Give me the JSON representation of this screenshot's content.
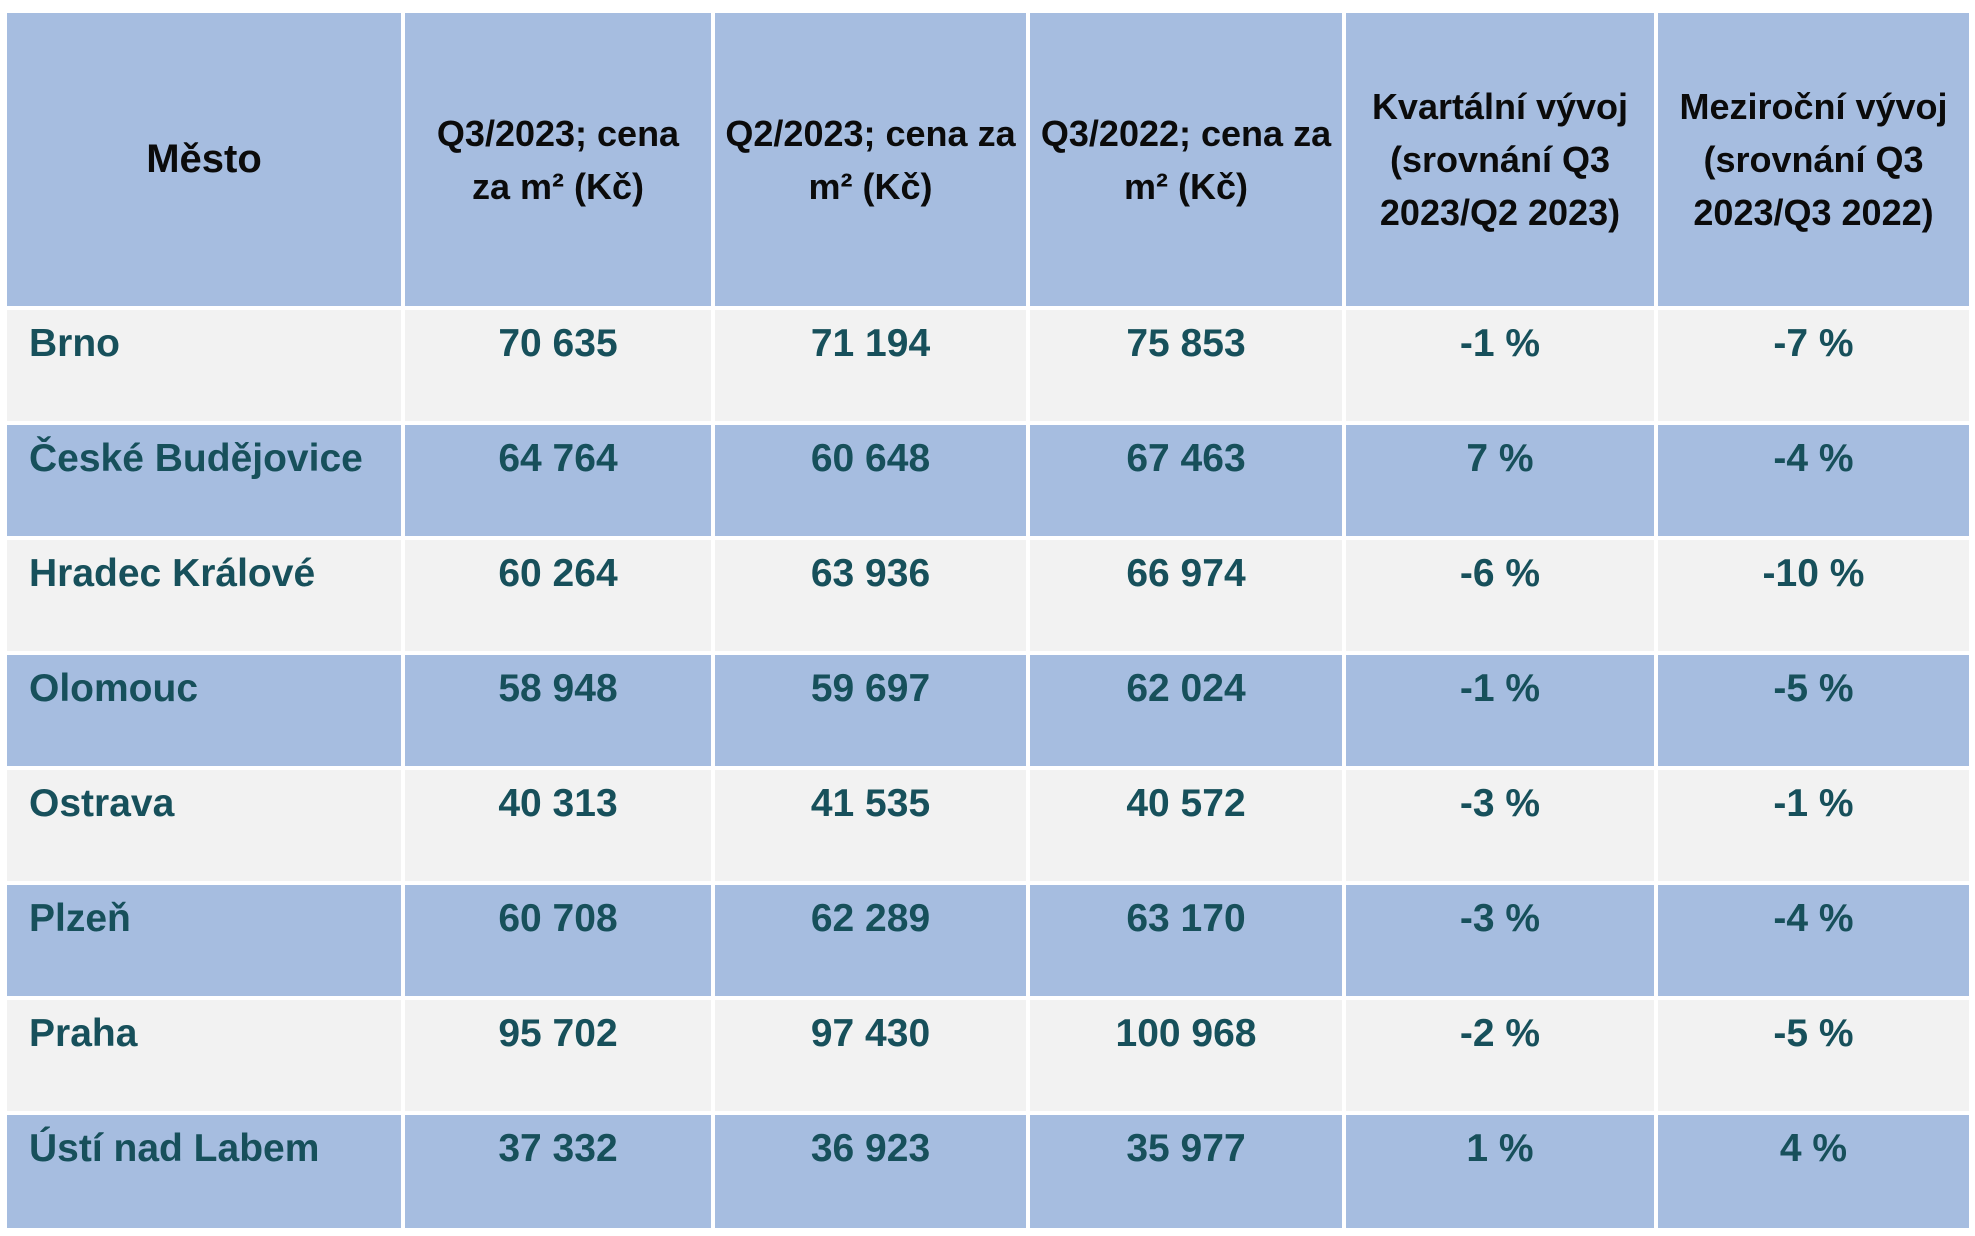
{
  "table": {
    "headers": [
      "Město",
      "Q3/2023; cena za m² (Kč)",
      "Q2/2023; cena za m² (Kč)",
      "Q3/2022; cena za m² (Kč)",
      "Kvartální vývoj (srovnání Q3 2023/Q2 2023)",
      "Meziroční vývoj (srovnání Q3 2023/Q3 2022)"
    ],
    "rows": [
      [
        "Brno",
        "70 635",
        "71 194",
        "75 853",
        "-1 %",
        "-7 %"
      ],
      [
        "České Budějovice",
        "64 764",
        "60 648",
        "67 463",
        "7 %",
        "-4 %"
      ],
      [
        "Hradec Králové",
        "60 264",
        "63 936",
        "66 974",
        "-6 %",
        "-10 %"
      ],
      [
        "Olomouc",
        "58 948",
        "59 697",
        "62 024",
        "-1 %",
        "-5 %"
      ],
      [
        "Ostrava",
        "40 313",
        "41 535",
        "40 572",
        "-3 %",
        "-1 %"
      ],
      [
        "Plzeň",
        "60 708",
        "62 289",
        "63 170",
        "-3 %",
        "-4 %"
      ],
      [
        "Praha",
        "95 702",
        "97 430",
        "100 968",
        "-2 %",
        "-5 %"
      ],
      [
        "Ústí nad Labem",
        "37 332",
        "36 923",
        "35 977",
        "1 %",
        "4 %"
      ]
    ]
  },
  "colors": {
    "header_bg": "#a6bde0",
    "band_light": "#f2f2f2",
    "band_blue": "#a6bde0",
    "value_text": "#17505b",
    "header_text": "#0b0b0b"
  }
}
